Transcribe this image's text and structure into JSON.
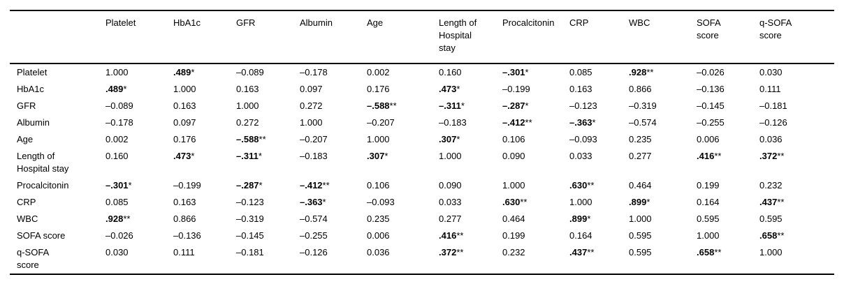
{
  "table": {
    "columns": [
      "",
      "Platelet",
      "HbA1c",
      "GFR",
      "Albumin",
      "Age",
      "Length of\nHospital\nstay",
      "Procalcitonin",
      "CRP",
      "WBC",
      "SOFA\nscore",
      "q-SOFA\nscore"
    ],
    "rows": [
      {
        "label": "Platelet",
        "cells": [
          {
            "v": "1.000"
          },
          {
            "v": ".489",
            "sig": "*"
          },
          {
            "v": "–0.089"
          },
          {
            "v": "–0.178"
          },
          {
            "v": "0.002"
          },
          {
            "v": "0.160"
          },
          {
            "v": "–.301",
            "sig": "*"
          },
          {
            "v": "0.085"
          },
          {
            "v": ".928",
            "sig": "**"
          },
          {
            "v": "–0.026"
          },
          {
            "v": "0.030"
          }
        ]
      },
      {
        "label": "HbA1c",
        "cells": [
          {
            "v": ".489",
            "sig": "*"
          },
          {
            "v": "1.000"
          },
          {
            "v": "0.163"
          },
          {
            "v": "0.097"
          },
          {
            "v": "0.176"
          },
          {
            "v": ".473",
            "sig": "*"
          },
          {
            "v": "–0.199"
          },
          {
            "v": "0.163"
          },
          {
            "v": "0.866"
          },
          {
            "v": "–0.136"
          },
          {
            "v": "0.111"
          }
        ]
      },
      {
        "label": "GFR",
        "cells": [
          {
            "v": "–0.089"
          },
          {
            "v": "0.163"
          },
          {
            "v": "1.000"
          },
          {
            "v": "0.272"
          },
          {
            "v": "–.588",
            "sig": "**"
          },
          {
            "v": "–.311",
            "sig": "*"
          },
          {
            "v": "–.287",
            "sig": "*"
          },
          {
            "v": "–0.123"
          },
          {
            "v": "–0.319"
          },
          {
            "v": "–0.145"
          },
          {
            "v": "–0.181"
          }
        ]
      },
      {
        "label": "Albumin",
        "cells": [
          {
            "v": "–0.178"
          },
          {
            "v": "0.097"
          },
          {
            "v": "0.272"
          },
          {
            "v": "1.000"
          },
          {
            "v": "–0.207"
          },
          {
            "v": "–0.183"
          },
          {
            "v": "–.412",
            "sig": "**"
          },
          {
            "v": "–.363",
            "sig": "*"
          },
          {
            "v": "–0.574"
          },
          {
            "v": "–0.255"
          },
          {
            "v": "–0.126"
          }
        ]
      },
      {
        "label": "Age",
        "cells": [
          {
            "v": "0.002"
          },
          {
            "v": "0.176"
          },
          {
            "v": "–.588",
            "sig": "**"
          },
          {
            "v": "–0.207"
          },
          {
            "v": "1.000"
          },
          {
            "v": ".307",
            "sig": "*"
          },
          {
            "v": "0.106"
          },
          {
            "v": "–0.093"
          },
          {
            "v": "0.235"
          },
          {
            "v": "0.006"
          },
          {
            "v": "0.036"
          }
        ]
      },
      {
        "label": "Length of\nHospital stay",
        "cells": [
          {
            "v": "0.160"
          },
          {
            "v": ".473",
            "sig": "*"
          },
          {
            "v": "–.311",
            "sig": "*"
          },
          {
            "v": "–0.183"
          },
          {
            "v": ".307",
            "sig": "*"
          },
          {
            "v": "1.000"
          },
          {
            "v": "0.090"
          },
          {
            "v": "0.033"
          },
          {
            "v": "0.277"
          },
          {
            "v": ".416",
            "sig": "**"
          },
          {
            "v": ".372",
            "sig": "**"
          }
        ]
      },
      {
        "label": "Procalcitonin",
        "cells": [
          {
            "v": "–.301",
            "sig": "*"
          },
          {
            "v": "–0.199"
          },
          {
            "v": "–.287",
            "sig": "*"
          },
          {
            "v": "–.412",
            "sig": "**"
          },
          {
            "v": "0.106"
          },
          {
            "v": "0.090"
          },
          {
            "v": "1.000"
          },
          {
            "v": ".630",
            "sig": "**"
          },
          {
            "v": "0.464"
          },
          {
            "v": "0.199"
          },
          {
            "v": "0.232"
          }
        ]
      },
      {
        "label": "CRP",
        "cells": [
          {
            "v": "0.085"
          },
          {
            "v": "0.163"
          },
          {
            "v": "–0.123"
          },
          {
            "v": "–.363",
            "sig": "*"
          },
          {
            "v": "–0.093"
          },
          {
            "v": "0.033"
          },
          {
            "v": ".630",
            "sig": "**"
          },
          {
            "v": "1.000"
          },
          {
            "v": ".899",
            "sig": "*"
          },
          {
            "v": "0.164"
          },
          {
            "v": ".437",
            "sig": "**"
          }
        ]
      },
      {
        "label": "WBC",
        "cells": [
          {
            "v": ".928",
            "sig": "**"
          },
          {
            "v": "0.866"
          },
          {
            "v": "–0.319"
          },
          {
            "v": "–0.574"
          },
          {
            "v": "0.235"
          },
          {
            "v": "0.277"
          },
          {
            "v": "0.464"
          },
          {
            "v": ".899",
            "sig": "*"
          },
          {
            "v": "1.000"
          },
          {
            "v": "0.595"
          },
          {
            "v": "0.595"
          }
        ]
      },
      {
        "label": "SOFA score",
        "cells": [
          {
            "v": "–0.026"
          },
          {
            "v": "–0.136"
          },
          {
            "v": "–0.145"
          },
          {
            "v": "–0.255"
          },
          {
            "v": "0.006"
          },
          {
            "v": ".416",
            "sig": "**"
          },
          {
            "v": "0.199"
          },
          {
            "v": "0.164"
          },
          {
            "v": "0.595"
          },
          {
            "v": "1.000"
          },
          {
            "v": ".658",
            "sig": "**"
          }
        ]
      },
      {
        "label": "q-SOFA\nscore",
        "cells": [
          {
            "v": "0.030"
          },
          {
            "v": "0.111"
          },
          {
            "v": "–0.181"
          },
          {
            "v": "–0.126"
          },
          {
            "v": "0.036"
          },
          {
            "v": ".372",
            "sig": "**"
          },
          {
            "v": "0.232"
          },
          {
            "v": ".437",
            "sig": "**"
          },
          {
            "v": "0.595"
          },
          {
            "v": ".658",
            "sig": "**"
          },
          {
            "v": "1.000"
          }
        ]
      }
    ],
    "colors": {
      "text": "#000000",
      "rule": "#000000",
      "background": "#ffffff"
    }
  }
}
